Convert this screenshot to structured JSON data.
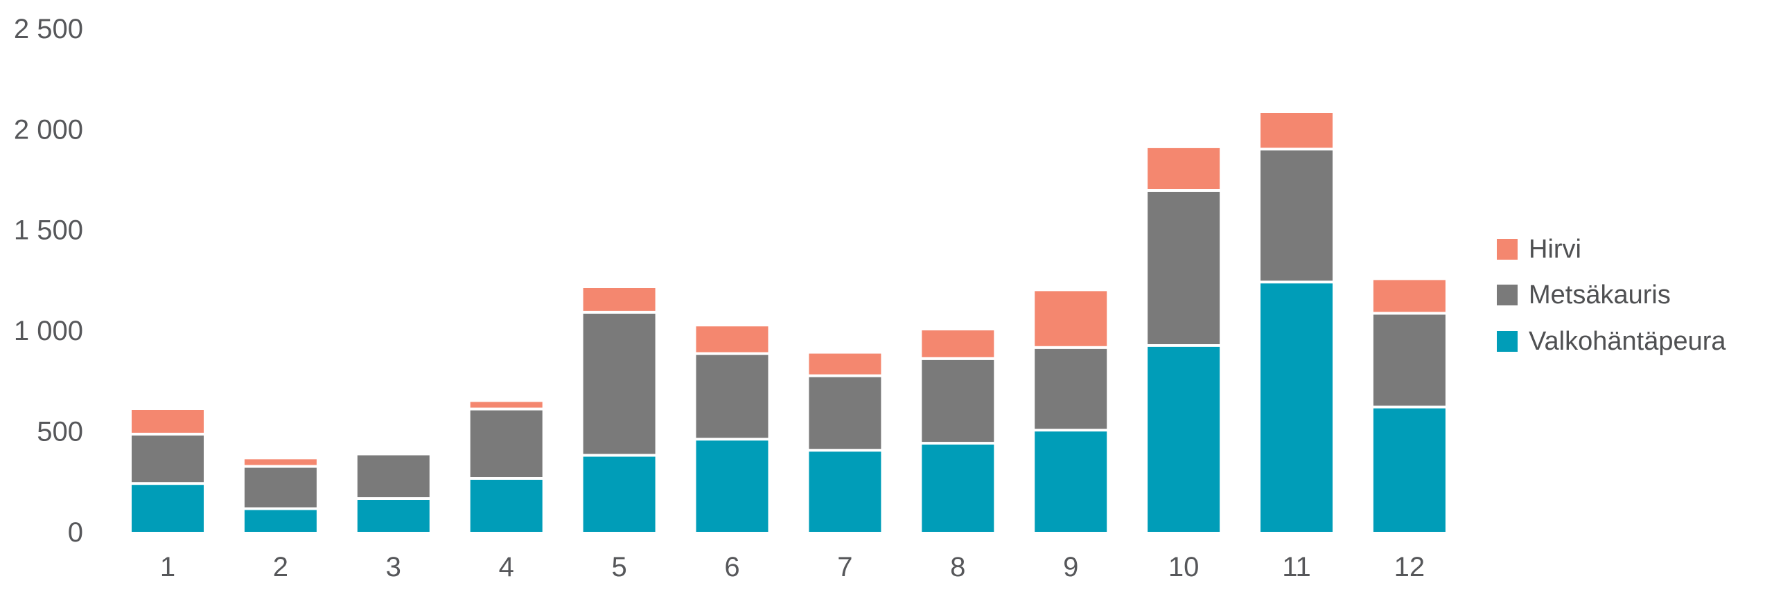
{
  "chart_data": {
    "type": "bar",
    "stacked": true,
    "orientation": "vertical",
    "title": "",
    "xlabel": "",
    "ylabel": "",
    "categories": [
      "1",
      "2",
      "3",
      "4",
      "5",
      "6",
      "7",
      "8",
      "9",
      "10",
      "11",
      "12"
    ],
    "series": [
      {
        "id": "valkohantapeura",
        "name": "Valkohäntäpeura",
        "color": "#009DB8",
        "values": [
          240,
          115,
          165,
          265,
          380,
          460,
          405,
          440,
          505,
          925,
          1240,
          620
        ]
      },
      {
        "id": "metsakauris",
        "name": "Metsäkauris",
        "color": "#7A7A7A",
        "values": [
          245,
          210,
          215,
          345,
          710,
          425,
          370,
          420,
          410,
          770,
          660,
          465
        ]
      },
      {
        "id": "hirvi",
        "name": "Hirvi",
        "color": "#F4876F",
        "values": [
          120,
          35,
          0,
          35,
          120,
          135,
          110,
          140,
          280,
          210,
          180,
          165
        ]
      }
    ],
    "totals": [
      605,
      360,
      380,
      645,
      1210,
      1020,
      885,
      1000,
      1195,
      1905,
      2080,
      1250
    ],
    "y_ticks": [
      {
        "value": 0,
        "label": "0"
      },
      {
        "value": 500,
        "label": "500"
      },
      {
        "value": 1000,
        "label": "1 000"
      },
      {
        "value": 1500,
        "label": "1 500"
      },
      {
        "value": 2000,
        "label": "2 000"
      },
      {
        "value": 2500,
        "label": "2 500"
      }
    ],
    "ylim": [
      0,
      2500
    ],
    "grid": false,
    "legend_position": "right",
    "legend_items": [
      {
        "id": "hirvi",
        "label": "Hirvi",
        "color": "#F4876F"
      },
      {
        "id": "metsakauris",
        "label": "Metsäkauris",
        "color": "#7A7A7A"
      },
      {
        "id": "valkohantapeura",
        "label": "Valkohäntäpeura",
        "color": "#009DB8"
      }
    ],
    "text_color": "#56575a",
    "background_color": "#ffffff"
  }
}
